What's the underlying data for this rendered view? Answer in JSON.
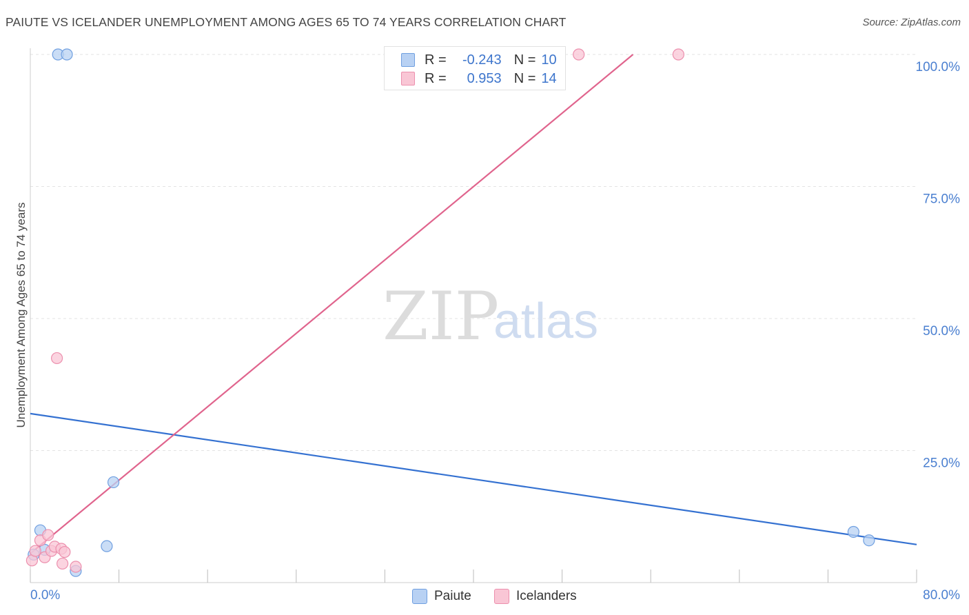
{
  "title": "PAIUTE VS ICELANDER UNEMPLOYMENT AMONG AGES 65 TO 74 YEARS CORRELATION CHART",
  "source": "Source: ZipAtlas.com",
  "watermark": {
    "zip": "ZIP",
    "atlas": "atlas"
  },
  "colors": {
    "paiute_fill": "#b8d1f3",
    "paiute_stroke": "#6f9fe0",
    "paiute_line": "#3471d1",
    "icelanders_fill": "#f9c6d5",
    "icelanders_stroke": "#ec8fad",
    "icelanders_line": "#e0648d",
    "tick_label": "#4a7fd0",
    "grid": "#e3e3e3"
  },
  "legend": {
    "rows": [
      {
        "r_label": "R =",
        "r_value": "-0.243",
        "n_label": "N =",
        "n_value": "10"
      },
      {
        "r_label": "R =",
        "r_value": "0.953",
        "n_label": "N =",
        "n_value": "14"
      }
    ],
    "series_names": [
      "Paiute",
      "Icelanders"
    ]
  },
  "chart_data": {
    "type": "scatter",
    "title": "PAIUTE VS ICELANDER UNEMPLOYMENT AMONG AGES 65 TO 74 YEARS CORRELATION CHART",
    "xlabel": "",
    "ylabel": "Unemployment Among Ages 65 to 74 years",
    "xlim": [
      0,
      80
    ],
    "ylim": [
      0,
      100
    ],
    "x_tick_labels": [
      "0.0%",
      "80.0%"
    ],
    "y_ticks": [
      25,
      50,
      75,
      100
    ],
    "y_tick_labels": [
      "25.0%",
      "50.0%",
      "75.0%",
      "100.0%"
    ],
    "series": [
      {
        "name": "Paiute",
        "r": -0.243,
        "n": 10,
        "points": [
          {
            "x": 0.3,
            "y": 5.3
          },
          {
            "x": 0.9,
            "y": 9.9
          },
          {
            "x": 1.3,
            "y": 6.2
          },
          {
            "x": 2.5,
            "y": 100
          },
          {
            "x": 3.3,
            "y": 100
          },
          {
            "x": 4.1,
            "y": 2.2
          },
          {
            "x": 6.9,
            "y": 6.9
          },
          {
            "x": 7.5,
            "y": 19.0
          },
          {
            "x": 74.3,
            "y": 9.6
          },
          {
            "x": 75.7,
            "y": 8.0
          }
        ],
        "trend": {
          "x": [
            0,
            80
          ],
          "y": [
            32.0,
            7.2
          ]
        }
      },
      {
        "name": "Icelanders",
        "r": 0.953,
        "n": 14,
        "points": [
          {
            "x": 0.15,
            "y": 4.2
          },
          {
            "x": 0.45,
            "y": 6.0
          },
          {
            "x": 0.9,
            "y": 8.0
          },
          {
            "x": 1.3,
            "y": 4.8
          },
          {
            "x": 1.6,
            "y": 9.0
          },
          {
            "x": 1.9,
            "y": 6.0
          },
          {
            "x": 2.2,
            "y": 6.8
          },
          {
            "x": 2.4,
            "y": 42.5
          },
          {
            "x": 2.8,
            "y": 6.4
          },
          {
            "x": 2.9,
            "y": 3.6
          },
          {
            "x": 3.1,
            "y": 5.8
          },
          {
            "x": 4.1,
            "y": 3.0
          },
          {
            "x": 49.5,
            "y": 100
          },
          {
            "x": 58.5,
            "y": 100
          }
        ],
        "trend": {
          "x": [
            0,
            54.4
          ],
          "y": [
            5.5,
            100
          ]
        }
      }
    ]
  }
}
